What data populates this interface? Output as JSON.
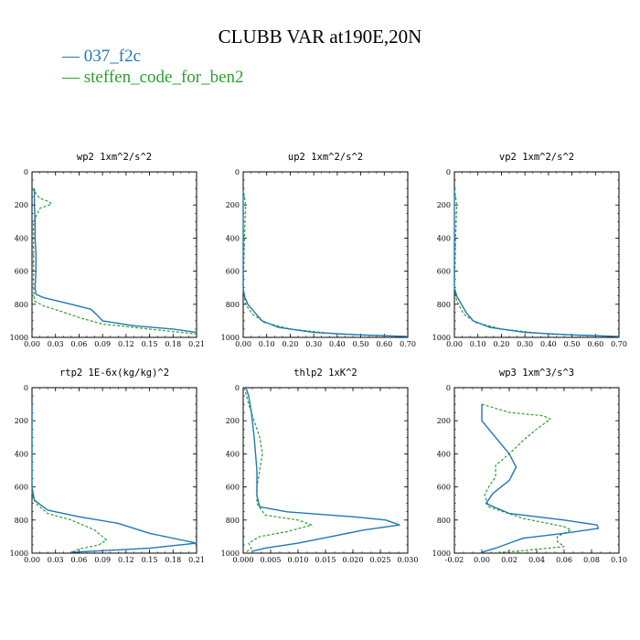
{
  "title": "CLUBB VAR at190E,20N",
  "legend": [
    {
      "name": "037_f2c",
      "color": "#1f77b4",
      "dash": "solid"
    },
    {
      "name": "steffen_code_for_ben2",
      "color": "#2ca02c",
      "dash": "dashed"
    }
  ],
  "chart_data": [
    {
      "type": "line",
      "title": "wp2  1xm^2/s^2",
      "xlim": [
        0,
        0.21
      ],
      "xticks": [
        "0.00",
        "0.03",
        "0.06",
        "0.09",
        "0.12",
        "0.15",
        "0.18",
        "0.21"
      ],
      "ylim": [
        0,
        1000
      ],
      "yticks": [
        "0",
        "200",
        "400",
        "600",
        "800",
        "1000"
      ],
      "series": [
        {
          "name": "037_f2c",
          "points": [
            [
              0.003,
              100
            ],
            [
              0.003,
              200
            ],
            [
              0.004,
              300
            ],
            [
              0.004,
              400
            ],
            [
              0.005,
              500
            ],
            [
              0.005,
              600
            ],
            [
              0.004,
              700
            ],
            [
              0.005,
              740
            ],
            [
              0.015,
              760
            ],
            [
              0.05,
              800
            ],
            [
              0.075,
              830
            ],
            [
              0.082,
              860
            ],
            [
              0.09,
              900
            ],
            [
              0.13,
              930
            ],
            [
              0.18,
              950
            ],
            [
              0.21,
              970
            ]
          ]
        },
        {
          "name": "steffen_code_for_ben2",
          "points": [
            [
              0.0,
              100
            ],
            [
              0.01,
              160
            ],
            [
              0.022,
              180
            ],
            [
              0.025,
              195
            ],
            [
              0.01,
              220
            ],
            [
              0.002,
              300
            ],
            [
              0.002,
              500
            ],
            [
              0.002,
              700
            ],
            [
              0.003,
              780
            ],
            [
              0.015,
              810
            ],
            [
              0.035,
              840
            ],
            [
              0.06,
              880
            ],
            [
              0.09,
              920
            ],
            [
              0.13,
              940
            ],
            [
              0.17,
              960
            ],
            [
              0.21,
              980
            ]
          ]
        }
      ]
    },
    {
      "type": "line",
      "title": "up2  1xm^2/s^2",
      "xlim": [
        0,
        0.7
      ],
      "xticks": [
        "0.00",
        "0.10",
        "0.20",
        "0.30",
        "0.40",
        "0.50",
        "0.60",
        "0.70"
      ],
      "ylim": [
        0,
        1000
      ],
      "yticks": [
        "0",
        "200",
        "400",
        "600",
        "800",
        "1000"
      ],
      "series": [
        {
          "name": "037_f2c",
          "points": [
            [
              0.0,
              100
            ],
            [
              0.0,
              400
            ],
            [
              0.0,
              700
            ],
            [
              0.005,
              750
            ],
            [
              0.02,
              800
            ],
            [
              0.05,
              850
            ],
            [
              0.08,
              900
            ],
            [
              0.15,
              940
            ],
            [
              0.3,
              970
            ],
            [
              0.5,
              985
            ],
            [
              0.7,
              995
            ]
          ]
        },
        {
          "name": "steffen_code_for_ben2",
          "points": [
            [
              0.0,
              100
            ],
            [
              0.01,
              200
            ],
            [
              0.005,
              400
            ],
            [
              0.0,
              700
            ],
            [
              0.01,
              800
            ],
            [
              0.04,
              860
            ],
            [
              0.09,
              910
            ],
            [
              0.2,
              950
            ],
            [
              0.4,
              980
            ],
            [
              0.7,
              995
            ]
          ]
        }
      ]
    },
    {
      "type": "line",
      "title": "vp2  1xm^2/s^2",
      "xlim": [
        0,
        0.7
      ],
      "xticks": [
        "0.00",
        "0.10",
        "0.20",
        "0.30",
        "0.40",
        "0.50",
        "0.60",
        "0.70"
      ],
      "ylim": [
        0,
        1000
      ],
      "yticks": [
        "0",
        "200",
        "400",
        "600",
        "800",
        "1000"
      ],
      "series": [
        {
          "name": "037_f2c",
          "points": [
            [
              0.0,
              100
            ],
            [
              0.0,
              400
            ],
            [
              0.0,
              700
            ],
            [
              0.01,
              750
            ],
            [
              0.03,
              800
            ],
            [
              0.05,
              850
            ],
            [
              0.08,
              900
            ],
            [
              0.15,
              940
            ],
            [
              0.3,
              970
            ],
            [
              0.5,
              985
            ],
            [
              0.7,
              995
            ]
          ]
        },
        {
          "name": "steffen_code_for_ben2",
          "points": [
            [
              0.0,
              100
            ],
            [
              0.01,
              200
            ],
            [
              0.005,
              400
            ],
            [
              0.0,
              700
            ],
            [
              0.01,
              780
            ],
            [
              0.04,
              860
            ],
            [
              0.09,
              910
            ],
            [
              0.2,
              950
            ],
            [
              0.4,
              980
            ],
            [
              0.7,
              995
            ]
          ]
        }
      ]
    },
    {
      "type": "line",
      "title": "rtp2  1E-6x(kg/kg)^2",
      "xlim": [
        0,
        0.21
      ],
      "xticks": [
        "0.00",
        "0.03",
        "0.06",
        "0.09",
        "0.12",
        "0.15",
        "0.18",
        "0.21"
      ],
      "ylim": [
        0,
        1000
      ],
      "yticks": [
        "0",
        "200",
        "400",
        "600",
        "800",
        "1000"
      ],
      "series": [
        {
          "name": "037_f2c",
          "points": [
            [
              0.0,
              100
            ],
            [
              0.0,
              600
            ],
            [
              0.003,
              680
            ],
            [
              0.02,
              740
            ],
            [
              0.06,
              780
            ],
            [
              0.11,
              820
            ],
            [
              0.15,
              880
            ],
            [
              0.19,
              920
            ],
            [
              0.21,
              940
            ],
            [
              0.15,
              970
            ],
            [
              0.09,
              985
            ],
            [
              0.05,
              995
            ]
          ]
        },
        {
          "name": "steffen_code_for_ben2",
          "points": [
            [
              0.0,
              100
            ],
            [
              0.0,
              650
            ],
            [
              0.005,
              700
            ],
            [
              0.02,
              760
            ],
            [
              0.05,
              800
            ],
            [
              0.08,
              860
            ],
            [
              0.095,
              920
            ],
            [
              0.085,
              950
            ],
            [
              0.06,
              975
            ],
            [
              0.05,
              995
            ]
          ]
        }
      ]
    },
    {
      "type": "line",
      "title": "thlp2  1xK^2",
      "xlim": [
        0,
        0.03
      ],
      "xticks": [
        "0.000",
        "0.005",
        "0.010",
        "0.015",
        "0.020",
        "0.025",
        "0.030"
      ],
      "ylim": [
        0,
        1000
      ],
      "yticks": [
        "0",
        "200",
        "400",
        "600",
        "800",
        "1000"
      ],
      "series": [
        {
          "name": "037_f2c",
          "points": [
            [
              0.0005,
              0
            ],
            [
              0.001,
              50
            ],
            [
              0.0015,
              150
            ],
            [
              0.002,
              300
            ],
            [
              0.0025,
              500
            ],
            [
              0.0025,
              650
            ],
            [
              0.003,
              720
            ],
            [
              0.008,
              750
            ],
            [
              0.02,
              780
            ],
            [
              0.026,
              800
            ],
            [
              0.0285,
              830
            ],
            [
              0.022,
              860
            ],
            [
              0.016,
              900
            ],
            [
              0.01,
              940
            ],
            [
              0.004,
              970
            ],
            [
              0.0015,
              990
            ]
          ]
        },
        {
          "name": "steffen_code_for_ben2",
          "points": [
            [
              0.0002,
              0
            ],
            [
              0.001,
              100
            ],
            [
              0.002,
              200
            ],
            [
              0.003,
              300
            ],
            [
              0.0035,
              400
            ],
            [
              0.003,
              500
            ],
            [
              0.0025,
              600
            ],
            [
              0.0025,
              700
            ],
            [
              0.004,
              770
            ],
            [
              0.01,
              800
            ],
            [
              0.0125,
              830
            ],
            [
              0.008,
              870
            ],
            [
              0.003,
              900
            ],
            [
              0.001,
              940
            ],
            [
              0.0015,
              970
            ],
            [
              0.0005,
              995
            ]
          ]
        }
      ]
    },
    {
      "type": "line",
      "title": "wp3  1xm^3/s^3",
      "xlim": [
        -0.02,
        0.1
      ],
      "xticks": [
        "-0.02",
        "0.00",
        "0.02",
        "0.04",
        "0.06",
        "0.08",
        "0.10"
      ],
      "ylim": [
        0,
        1000
      ],
      "yticks": [
        "0",
        "200",
        "400",
        "600",
        "800",
        "1000"
      ],
      "series": [
        {
          "name": "037_f2c",
          "points": [
            [
              0.0,
              100
            ],
            [
              0.0,
              200
            ],
            [
              0.01,
              300
            ],
            [
              0.02,
              400
            ],
            [
              0.025,
              480
            ],
            [
              0.02,
              560
            ],
            [
              0.008,
              640
            ],
            [
              0.003,
              700
            ],
            [
              0.02,
              760
            ],
            [
              0.06,
              800
            ],
            [
              0.084,
              830
            ],
            [
              0.085,
              850
            ],
            [
              0.06,
              880
            ],
            [
              0.03,
              910
            ],
            [
              0.02,
              940
            ],
            [
              0.01,
              970
            ],
            [
              0.0,
              995
            ]
          ]
        },
        {
          "name": "steffen_code_for_ben2",
          "points": [
            [
              0.0,
              100
            ],
            [
              0.02,
              150
            ],
            [
              0.045,
              170
            ],
            [
              0.05,
              190
            ],
            [
              0.04,
              250
            ],
            [
              0.03,
              320
            ],
            [
              0.02,
              400
            ],
            [
              0.01,
              470
            ],
            [
              0.01,
              540
            ],
            [
              0.005,
              600
            ],
            [
              0.002,
              650
            ],
            [
              0.005,
              720
            ],
            [
              0.03,
              790
            ],
            [
              0.06,
              840
            ],
            [
              0.065,
              860
            ],
            [
              0.055,
              900
            ],
            [
              0.055,
              930
            ],
            [
              0.06,
              960
            ],
            [
              0.03,
              985
            ],
            [
              0.01,
              998
            ]
          ]
        }
      ]
    }
  ]
}
